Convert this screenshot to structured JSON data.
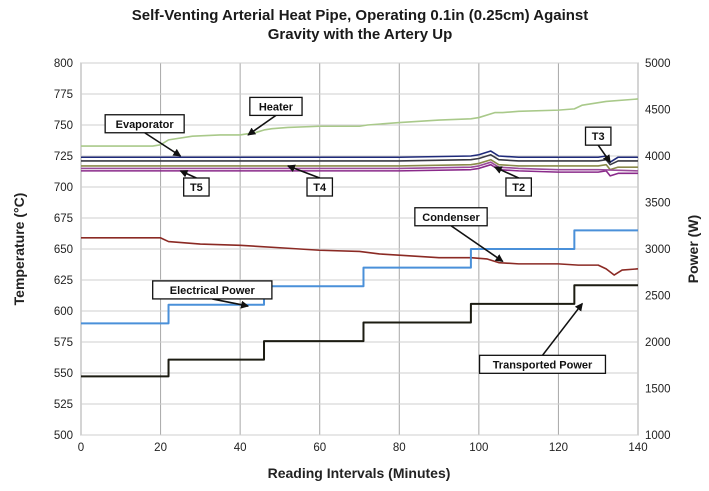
{
  "chart_data": {
    "type": "line",
    "title_lines": [
      "Self-Venting Arterial Heat Pipe, Operating 0.1in (0.25cm) Against",
      "Gravity with the Artery Up"
    ],
    "xlabel": "Reading Intervals (Minutes)",
    "ylabel": "Temperature (°C)",
    "y2label": "Power (W)",
    "xlim": [
      0,
      140
    ],
    "ylim": [
      500,
      800
    ],
    "y2lim": [
      1000,
      5000
    ],
    "x_ticks": [
      "0",
      "20",
      "40",
      "60",
      "80",
      "100",
      "120",
      "140"
    ],
    "y_ticks": [
      "500",
      "525",
      "550",
      "575",
      "600",
      "625",
      "650",
      "675",
      "700",
      "725",
      "750",
      "775",
      "800"
    ],
    "y2_ticks": [
      "1000",
      "1500",
      "2000",
      "2500",
      "3000",
      "3500",
      "4000",
      "4500",
      "5000"
    ],
    "grid": true,
    "series": [
      {
        "name": "Heater",
        "axis": "left",
        "color": "#a9c98a",
        "x": [
          0,
          18,
          20,
          22,
          28,
          35,
          40,
          42,
          44,
          46,
          48,
          52,
          60,
          70,
          72,
          80,
          90,
          98,
          100,
          104,
          106,
          110,
          120,
          124,
          126,
          132,
          140
        ],
        "y": [
          733,
          733,
          734,
          738,
          741,
          742,
          742,
          743,
          744,
          746,
          747,
          748,
          749,
          749,
          750,
          752,
          754,
          755,
          756,
          760,
          760,
          761,
          762,
          763,
          766,
          769,
          771
        ]
      },
      {
        "name": "Evaporator",
        "axis": "left",
        "color": "#1f2a7a",
        "x": [
          0,
          20,
          40,
          60,
          80,
          98,
          100,
          103,
          105,
          110,
          120,
          130,
          132,
          133,
          135,
          140
        ],
        "y": [
          724,
          724,
          724,
          724,
          724,
          725,
          726,
          729,
          725,
          724,
          724,
          724,
          725,
          720,
          724,
          724
        ]
      },
      {
        "name": "T3",
        "axis": "left",
        "color": "#3a3a44",
        "x": [
          0,
          20,
          40,
          60,
          80,
          98,
          100,
          103,
          105,
          110,
          120,
          130,
          132,
          133,
          135,
          140
        ],
        "y": [
          721,
          721,
          721,
          721,
          721,
          722,
          723,
          726,
          722,
          721,
          721,
          721,
          722,
          718,
          721,
          721
        ]
      },
      {
        "name": "T4",
        "axis": "left",
        "color": "#8a8a4a",
        "x": [
          0,
          20,
          40,
          60,
          80,
          98,
          100,
          103,
          105,
          110,
          120,
          130,
          132,
          133,
          135,
          140
        ],
        "y": [
          717,
          717,
          717,
          717,
          717,
          718,
          719,
          722,
          718,
          717,
          717,
          717,
          718,
          714,
          716,
          716
        ]
      },
      {
        "name": "T5",
        "axis": "left",
        "color": "#8a2a8a",
        "x": [
          0,
          20,
          40,
          60,
          80,
          98,
          100,
          103,
          105,
          110,
          120,
          130,
          132,
          133,
          135,
          140
        ],
        "y": [
          713,
          713,
          713,
          713,
          713,
          714,
          715,
          718,
          714,
          713,
          712,
          712,
          713,
          709,
          711,
          711
        ]
      },
      {
        "name": "T2",
        "axis": "left",
        "color": "#9a4a9a",
        "x": [
          0,
          20,
          40,
          60,
          80,
          98,
          100,
          103,
          105,
          110,
          120,
          130,
          140
        ],
        "y": [
          715,
          715,
          715,
          715,
          715,
          716,
          717,
          720,
          716,
          715,
          714,
          714,
          713
        ]
      },
      {
        "name": "Condenser",
        "axis": "left",
        "color": "#8b2a24",
        "x": [
          0,
          20,
          22,
          30,
          40,
          45,
          50,
          60,
          70,
          75,
          80,
          90,
          95,
          98,
          102,
          105,
          110,
          120,
          125,
          130,
          132,
          134,
          136,
          140
        ],
        "y": [
          659,
          659,
          656,
          654,
          653,
          652,
          651,
          649,
          648,
          646,
          645,
          643,
          643,
          643,
          642,
          639,
          638,
          638,
          637,
          637,
          634,
          629,
          633,
          634
        ]
      },
      {
        "name": "Electrical Power",
        "axis": "right",
        "color": "#4a90d9",
        "step": true,
        "x": [
          0,
          22,
          46,
          71,
          98,
          124,
          140
        ],
        "y": [
          2200,
          2400,
          2600,
          2800,
          3000,
          3200,
          3200
        ]
      },
      {
        "name": "Transported Power",
        "axis": "right",
        "color": "#1c1c12",
        "step": true,
        "x": [
          0,
          22,
          46,
          71,
          98,
          124,
          140
        ],
        "y": [
          1630,
          1810,
          2010,
          2210,
          2410,
          2610,
          2610
        ]
      }
    ],
    "annotations": [
      {
        "text": "Heater",
        "label_at": [
          49,
          765
        ],
        "arrow_to": [
          42,
          742
        ]
      },
      {
        "text": "Evaporator",
        "label_at": [
          16,
          751
        ],
        "arrow_to": [
          25,
          725
        ]
      },
      {
        "text": "T3",
        "label_at": [
          130,
          741
        ],
        "arrow_to": [
          133,
          720
        ]
      },
      {
        "text": "T5",
        "label_at": [
          29,
          700
        ],
        "arrow_to": [
          25,
          713
        ]
      },
      {
        "text": "T4",
        "label_at": [
          60,
          700
        ],
        "arrow_to": [
          52,
          717
        ]
      },
      {
        "text": "T2",
        "label_at": [
          110,
          700
        ],
        "arrow_to": [
          104,
          716
        ]
      },
      {
        "text": "Condenser",
        "label_at": [
          93,
          676
        ],
        "arrow_to": [
          106,
          640
        ]
      },
      {
        "text": "Electrical Power",
        "label_at": [
          33,
          617
        ],
        "arrow_to": [
          42,
          604
        ]
      },
      {
        "text": "Transported Power",
        "label_at": [
          116,
          557
        ],
        "arrow_to": [
          126,
          606
        ]
      }
    ]
  }
}
